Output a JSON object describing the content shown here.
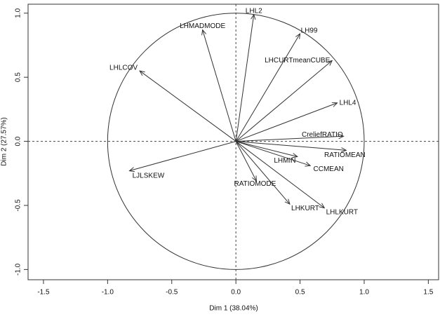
{
  "chart_data": {
    "type": "vector",
    "labels": [
      "LHL2",
      "LHMADMODE",
      "LH99",
      "LHCURTmeanCUBE",
      "LHLCOV",
      "LHL4",
      "CreliefRATIO",
      "RATIOMEAN",
      "LHMIN",
      "CCMEAN",
      "LJLSKEW",
      "RATIOMODE",
      "LHKURT",
      "LHLKURT"
    ],
    "x": [
      0.14,
      -0.26,
      0.5,
      0.75,
      -0.75,
      0.79,
      0.84,
      0.86,
      0.48,
      0.58,
      -0.83,
      0.16,
      0.42,
      0.69
    ],
    "values": [
      0.99,
      0.87,
      0.84,
      0.63,
      0.55,
      0.3,
      0.04,
      -0.07,
      -0.12,
      -0.19,
      -0.23,
      -0.31,
      -0.49,
      -0.52
    ],
    "color": "#333333",
    "xlabel": "Dim 1 (38.04%)",
    "ylabel": "Dim 2 (27.57%)",
    "xlim": [
      -1.62,
      1.58
    ],
    "ylim": [
      -1.08,
      1.07
    ],
    "xticks": [
      -1.5,
      {
        "value": -1,
        "label": "-1.0"
      },
      -0.5,
      {
        "value": 0,
        "label": "0.0"
      },
      0.5,
      {
        "value": 1,
        "label": "1.0"
      },
      1.5
    ],
    "yticks": [
      {
        "value": -1,
        "label": "-1.0"
      },
      -0.5,
      {
        "value": 0,
        "label": "0.0"
      },
      0.5,
      {
        "value": 1,
        "label": "1.0"
      }
    ]
  }
}
